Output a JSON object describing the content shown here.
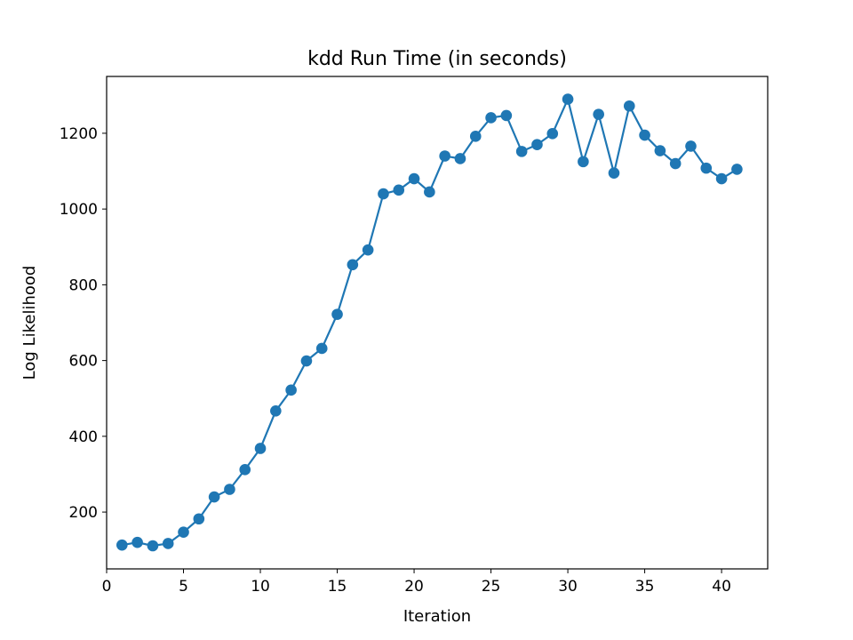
{
  "chart_data": {
    "type": "line",
    "title": "kdd Run Time (in seconds)",
    "xlabel": "Iteration",
    "ylabel": "Log Likelihood",
    "xlim": [
      0,
      43
    ],
    "ylim": [
      50,
      1350
    ],
    "x_ticks": [
      0,
      5,
      10,
      15,
      20,
      25,
      30,
      35,
      40
    ],
    "y_ticks": [
      200,
      400,
      600,
      800,
      1000,
      1200
    ],
    "grid": false,
    "marker": "circle",
    "series": [
      {
        "color": "#1f77b4",
        "x": [
          1,
          2,
          3,
          4,
          5,
          6,
          7,
          8,
          9,
          10,
          11,
          12,
          13,
          14,
          15,
          16,
          17,
          18,
          19,
          20,
          21,
          22,
          23,
          24,
          25,
          26,
          27,
          28,
          29,
          30,
          31,
          32,
          33,
          34,
          35,
          36,
          37,
          38,
          39,
          40,
          41
        ],
        "y": [
          113,
          120,
          111,
          117,
          147,
          182,
          240,
          260,
          312,
          368,
          467,
          522,
          599,
          632,
          722,
          853,
          892,
          1040,
          1050,
          1080,
          1045,
          1140,
          1133,
          1192,
          1241,
          1247,
          1152,
          1170,
          1199,
          1290,
          1125,
          1250,
          1095,
          1272,
          1195,
          1154,
          1120,
          1166,
          1108,
          1080,
          1105
        ]
      }
    ]
  }
}
